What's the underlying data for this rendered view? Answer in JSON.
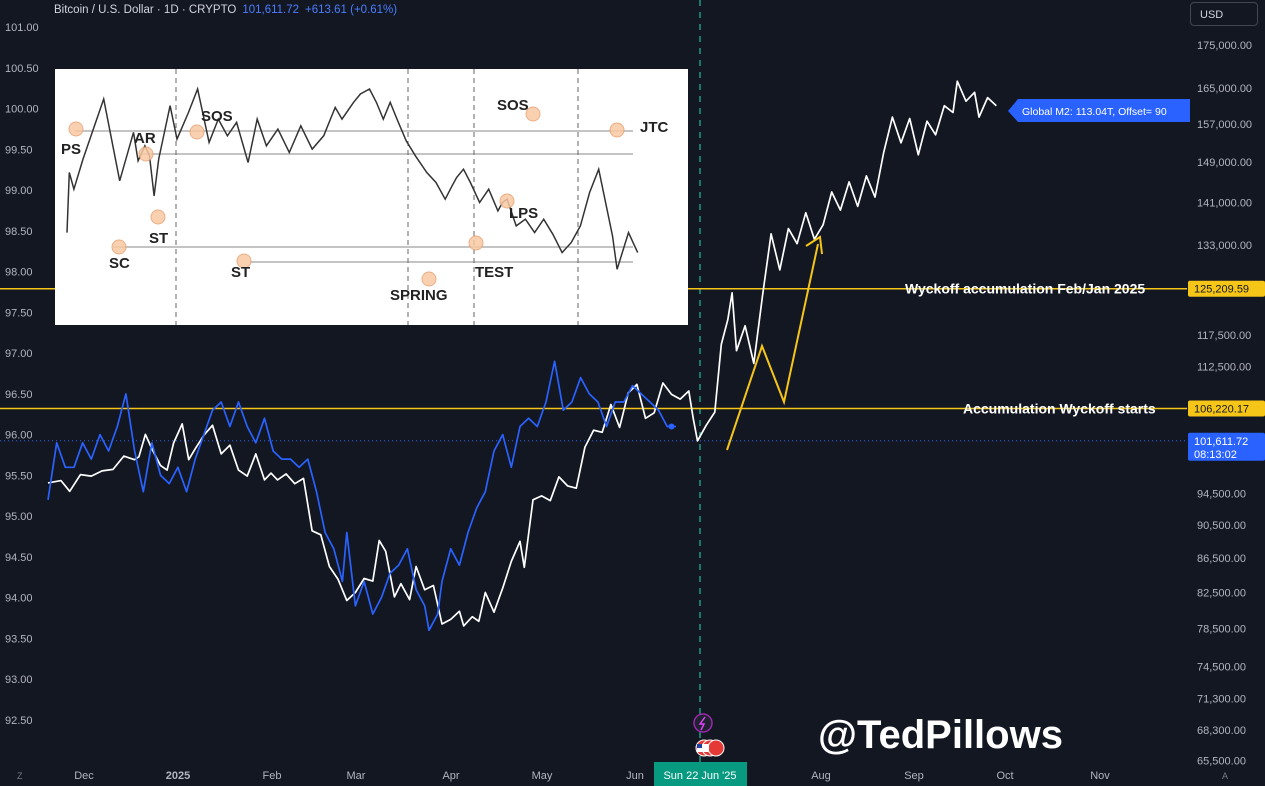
{
  "header": {
    "title": "Bitcoin / U.S. Dollar · 1D · CRYPTO",
    "price": "101,611.72",
    "change": "+613.61 (+0.61%)"
  },
  "currency_button": "USD",
  "corners": {
    "left": "Z",
    "right": "A"
  },
  "watermark": "@TedPillows",
  "colors": {
    "background": "#131722",
    "btc": "#ffffff",
    "m2": "#2962ff",
    "yellow": "#f5c518",
    "accent": "#089981"
  },
  "chart_data": {
    "type": "line",
    "x_tick_labels": [
      "Dec",
      "2025",
      "Feb",
      "Mar",
      "Apr",
      "May",
      "Jun",
      "Aug",
      "Sep",
      "Oct",
      "Nov"
    ],
    "crosshair_date": "Sun 22 Jun '25",
    "left_axis": {
      "labels": [
        "101.00",
        "100.50",
        "100.00",
        "99.50",
        "99.00",
        "98.50",
        "98.00",
        "97.50",
        "97.00",
        "96.50",
        "96.00",
        "95.50",
        "95.00",
        "94.50",
        "94.00",
        "93.50",
        "93.00",
        "92.50"
      ],
      "range": [
        92.4,
        101.1
      ]
    },
    "right_axis": {
      "labels": [
        "175,000.00",
        "165,000.00",
        "157,000.00",
        "149,000.00",
        "141,000.00",
        "133,000.00",
        "125,209.59",
        "117,500.00",
        "112,500.00",
        "106,220.17",
        "101,611.72",
        "94,500.00",
        "90,500.00",
        "86,500.00",
        "82,500.00",
        "78,500.00",
        "74,500.00",
        "71,300.00",
        "68,300.00",
        "65,500.00"
      ],
      "scale": "log"
    },
    "price_tags": [
      {
        "label": "125,209.59",
        "color": "#f5c518"
      },
      {
        "label": "106,220.17",
        "color": "#f5c518"
      },
      {
        "label": "101,611.72",
        "sub": "08:13:02",
        "color": "#2962ff"
      }
    ],
    "m2_tag": "Global M2: 113.04T, Offset= 90",
    "hlines": [
      {
        "price": 125209.59,
        "label": "Wyckoff accumulation Feb/Jan 2025",
        "color": "#f5c518"
      },
      {
        "price": 106220.17,
        "label": "Accumulation Wyckoff starts",
        "color": "#f5c518"
      }
    ],
    "series": [
      {
        "name": "Bitcoin / U.S. Dollar",
        "color": "#ffffff",
        "axis": "right",
        "points": [
          [
            0,
            95900
          ],
          [
            6,
            96200
          ],
          [
            10,
            94800
          ],
          [
            15,
            97000
          ],
          [
            20,
            96800
          ],
          [
            25,
            97500
          ],
          [
            30,
            97700
          ],
          [
            35,
            99500
          ],
          [
            40,
            99000
          ],
          [
            42,
            99400
          ],
          [
            45,
            102500
          ],
          [
            48,
            100500
          ],
          [
            52,
            98200
          ],
          [
            55,
            97600
          ],
          [
            58,
            101300
          ],
          [
            62,
            104000
          ],
          [
            65,
            99000
          ],
          [
            68,
            100500
          ],
          [
            72,
            102400
          ],
          [
            76,
            103800
          ],
          [
            80,
            99800
          ],
          [
            84,
            101000
          ],
          [
            88,
            97600
          ],
          [
            92,
            96800
          ],
          [
            96,
            99800
          ],
          [
            100,
            96300
          ],
          [
            103,
            97200
          ],
          [
            106,
            96300
          ],
          [
            110,
            97100
          ],
          [
            114,
            95800
          ],
          [
            118,
            96500
          ],
          [
            122,
            89800
          ],
          [
            126,
            89300
          ],
          [
            130,
            85500
          ],
          [
            134,
            84000
          ],
          [
            138,
            81600
          ],
          [
            142,
            82500
          ],
          [
            146,
            84100
          ],
          [
            150,
            83800
          ],
          [
            153,
            88600
          ],
          [
            156,
            87300
          ],
          [
            160,
            82000
          ],
          [
            163,
            83500
          ],
          [
            167,
            81700
          ],
          [
            170,
            85500
          ],
          [
            174,
            82800
          ],
          [
            178,
            83300
          ],
          [
            182,
            79000
          ],
          [
            186,
            79500
          ],
          [
            190,
            80400
          ],
          [
            192,
            78800
          ],
          [
            196,
            79800
          ],
          [
            199,
            79300
          ],
          [
            202,
            82500
          ],
          [
            206,
            80300
          ],
          [
            210,
            83000
          ],
          [
            214,
            86100
          ],
          [
            218,
            88500
          ],
          [
            220,
            85400
          ],
          [
            224,
            93700
          ],
          [
            228,
            94200
          ],
          [
            232,
            93600
          ],
          [
            236,
            96700
          ],
          [
            240,
            95500
          ],
          [
            244,
            95200
          ],
          [
            248,
            100700
          ],
          [
            252,
            103100
          ],
          [
            256,
            102800
          ],
          [
            260,
            106800
          ],
          [
            264,
            103500
          ],
          [
            268,
            108500
          ],
          [
            272,
            109800
          ],
          [
            276,
            104800
          ],
          [
            280,
            105600
          ],
          [
            284,
            110000
          ],
          [
            288,
            108300
          ],
          [
            292,
            107600
          ],
          [
            296,
            108800
          ],
          [
            298,
            104800
          ],
          [
            300,
            101600
          ],
          [
            304,
            103800
          ],
          [
            308,
            105700
          ],
          [
            311,
            116000
          ],
          [
            314,
            120000
          ],
          [
            316,
            124500
          ],
          [
            318,
            115000
          ],
          [
            322,
            119000
          ],
          [
            326,
            113000
          ],
          [
            330,
            124000
          ],
          [
            334,
            135000
          ],
          [
            338,
            128500
          ],
          [
            342,
            136000
          ],
          [
            346,
            133200
          ],
          [
            350,
            139000
          ],
          [
            354,
            134000
          ],
          [
            358,
            136700
          ],
          [
            362,
            143000
          ],
          [
            366,
            139500
          ],
          [
            370,
            145000
          ],
          [
            374,
            140200
          ],
          [
            378,
            146200
          ],
          [
            382,
            142000
          ],
          [
            386,
            151000
          ],
          [
            390,
            158500
          ],
          [
            394,
            153000
          ],
          [
            398,
            158200
          ],
          [
            402,
            150500
          ],
          [
            406,
            157600
          ],
          [
            410,
            154700
          ],
          [
            414,
            161000
          ],
          [
            418,
            159500
          ],
          [
            420,
            166500
          ],
          [
            424,
            162000
          ],
          [
            428,
            164000
          ],
          [
            430,
            158500
          ],
          [
            434,
            162800
          ],
          [
            438,
            161000
          ]
        ]
      },
      {
        "name": "Global M2: 113.04T, Offset= 90",
        "color": "#2962ff",
        "axis": "left",
        "points": [
          [
            0,
            95.2
          ],
          [
            4,
            95.9
          ],
          [
            8,
            95.6
          ],
          [
            12,
            95.6
          ],
          [
            16,
            95.9
          ],
          [
            20,
            95.7
          ],
          [
            24,
            96.0
          ],
          [
            28,
            95.8
          ],
          [
            32,
            96.1
          ],
          [
            36,
            96.5
          ],
          [
            40,
            95.8
          ],
          [
            44,
            95.3
          ],
          [
            48,
            95.9
          ],
          [
            52,
            95.5
          ],
          [
            56,
            95.4
          ],
          [
            60,
            95.6
          ],
          [
            64,
            95.3
          ],
          [
            68,
            95.7
          ],
          [
            72,
            96.0
          ],
          [
            76,
            96.3
          ],
          [
            80,
            96.4
          ],
          [
            84,
            96.1
          ],
          [
            88,
            96.4
          ],
          [
            92,
            96.1
          ],
          [
            96,
            95.9
          ],
          [
            100,
            96.2
          ],
          [
            104,
            95.8
          ],
          [
            108,
            95.7
          ],
          [
            112,
            95.7
          ],
          [
            116,
            95.6
          ],
          [
            120,
            95.7
          ],
          [
            124,
            95.3
          ],
          [
            128,
            94.8
          ],
          [
            132,
            94.6
          ],
          [
            136,
            94.2
          ],
          [
            138,
            94.8
          ],
          [
            142,
            93.9
          ],
          [
            146,
            94.2
          ],
          [
            150,
            93.8
          ],
          [
            154,
            94.0
          ],
          [
            158,
            94.3
          ],
          [
            162,
            94.4
          ],
          [
            166,
            94.6
          ],
          [
            170,
            94.1
          ],
          [
            174,
            93.9
          ],
          [
            176,
            93.6
          ],
          [
            180,
            93.8
          ],
          [
            182,
            94.2
          ],
          [
            186,
            94.6
          ],
          [
            190,
            94.4
          ],
          [
            194,
            94.8
          ],
          [
            198,
            95.1
          ],
          [
            202,
            95.3
          ],
          [
            206,
            95.8
          ],
          [
            210,
            96.0
          ],
          [
            214,
            95.6
          ],
          [
            218,
            96.1
          ],
          [
            222,
            96.2
          ],
          [
            226,
            96.1
          ],
          [
            230,
            96.4
          ],
          [
            234,
            96.9
          ],
          [
            238,
            96.3
          ],
          [
            242,
            96.4
          ],
          [
            246,
            96.7
          ],
          [
            250,
            96.5
          ],
          [
            254,
            96.4
          ],
          [
            258,
            96.1
          ],
          [
            262,
            96.4
          ],
          [
            266,
            96.4
          ],
          [
            270,
            96.6
          ],
          [
            274,
            96.5
          ],
          [
            278,
            96.4
          ],
          [
            282,
            96.3
          ],
          [
            286,
            96.1
          ],
          [
            290,
            96.1
          ]
        ]
      }
    ],
    "inset": {
      "labels": [
        "PS",
        "SC",
        "AR",
        "ST",
        "SOS",
        "ST",
        "SPRING",
        "TEST",
        "LPS",
        "SOS",
        "JTC"
      ],
      "points": [
        [
          0,
          0.02
        ],
        [
          1,
          0.38
        ],
        [
          3,
          0.28
        ],
        [
          7,
          0.46
        ],
        [
          16,
          0.82
        ],
        [
          23,
          0.33
        ],
        [
          29,
          0.62
        ],
        [
          31,
          0.45
        ],
        [
          34,
          0.54
        ],
        [
          36,
          0.48
        ],
        [
          38,
          0.24
        ],
        [
          40,
          0.46
        ],
        [
          45,
          0.78
        ],
        [
          48,
          0.58
        ],
        [
          53,
          0.74
        ],
        [
          57,
          0.88
        ],
        [
          62,
          0.56
        ],
        [
          66,
          0.7
        ],
        [
          70,
          0.6
        ],
        [
          74,
          0.68
        ],
        [
          79,
          0.44
        ],
        [
          83,
          0.7
        ],
        [
          87,
          0.54
        ],
        [
          92,
          0.64
        ],
        [
          97,
          0.5
        ],
        [
          102,
          0.66
        ],
        [
          107,
          0.52
        ],
        [
          112,
          0.6
        ],
        [
          117,
          0.77
        ],
        [
          120,
          0.7
        ],
        [
          125,
          0.8
        ],
        [
          128,
          0.85
        ],
        [
          132,
          0.88
        ],
        [
          135,
          0.8
        ],
        [
          138,
          0.7
        ],
        [
          141,
          0.8
        ],
        [
          144,
          0.7
        ],
        [
          148,
          0.57
        ],
        [
          152,
          0.48
        ],
        [
          157,
          0.38
        ],
        [
          161,
          0.32
        ],
        [
          165,
          0.22
        ],
        [
          168,
          0.3
        ],
        [
          170,
          0.35
        ],
        [
          173,
          0.4
        ],
        [
          176,
          0.32
        ],
        [
          180,
          0.2
        ],
        [
          184,
          0.28
        ],
        [
          188,
          0.15
        ],
        [
          190,
          0.2
        ],
        [
          192,
          0.22
        ],
        [
          196,
          0.06
        ],
        [
          200,
          0.1
        ],
        [
          204,
          0.02
        ],
        [
          208,
          0.1
        ],
        [
          212,
          0.01
        ],
        [
          216,
          -0.1
        ],
        [
          220,
          -0.04
        ],
        [
          224,
          0.06
        ],
        [
          228,
          0.26
        ],
        [
          232,
          0.4
        ],
        [
          238,
          0.0
        ],
        [
          240,
          -0.2
        ],
        [
          245,
          0.02
        ],
        [
          249,
          -0.1
        ]
      ],
      "x_range": [
        0,
        250
      ],
      "y_range": [
        -0.3,
        1.0
      ]
    }
  }
}
